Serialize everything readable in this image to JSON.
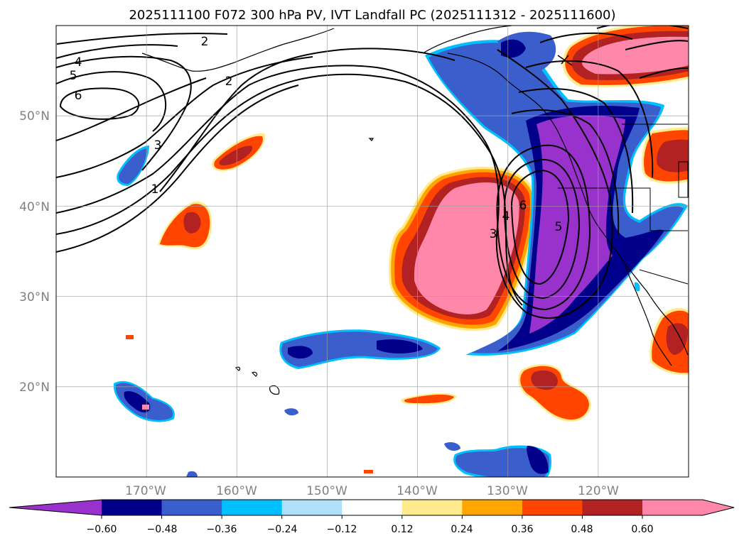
{
  "title": "2025111100 F072 300 hPa PV, IVT Landfall PC (2025111312 - 2025111600)",
  "map": {
    "projection": "PlateCarree",
    "lon_range": [
      -180,
      -110
    ],
    "lat_range": [
      10,
      60
    ],
    "lon_gridlines": [
      -170,
      -160,
      -150,
      -140,
      -130,
      -120
    ],
    "lat_gridlines": [
      20,
      30,
      40,
      50
    ],
    "lon_labels": [
      "170°W",
      "160°W",
      "150°W",
      "140°W",
      "130°W",
      "120°W"
    ],
    "lat_labels": [
      "20°N",
      "30°N",
      "40°N",
      "50°N"
    ]
  },
  "contours": {
    "variable": "300 hPa PV",
    "labels": [
      "2",
      "4",
      "5",
      "6",
      "2",
      "3",
      "1",
      "3",
      "4",
      "6",
      "5"
    ]
  },
  "colorbar": {
    "tick_labels": [
      "−0.60",
      "−0.48",
      "−0.36",
      "−0.24",
      "−0.12",
      "0.12",
      "0.24",
      "0.36",
      "0.48",
      "0.60"
    ],
    "levels": [
      -0.6,
      -0.48,
      -0.36,
      -0.24,
      -0.12,
      0.12,
      0.24,
      0.36,
      0.48,
      0.6
    ],
    "colors": [
      "#9932cc",
      "#00008b",
      "#3a5fcd",
      "#00bfff",
      "#afe0fa",
      "#ffffff",
      "#ffeb8c",
      "#ffa500",
      "#ff4500",
      "#b22222",
      "#ff88aa"
    ],
    "extend": "both"
  },
  "colors": {
    "purple": "#9932cc",
    "navy": "#00008b",
    "blue": "#3a5fcd",
    "cyan": "#00bfff",
    "lightblue": "#afe0fa",
    "yellow": "#ffeb8c",
    "orange": "#ffa500",
    "redorange": "#ff4500",
    "firebrick": "#b22222",
    "pink": "#ff88aa"
  }
}
